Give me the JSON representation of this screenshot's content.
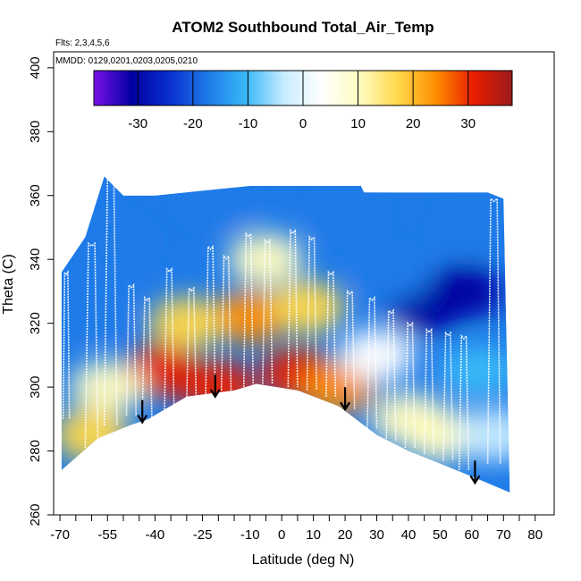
{
  "chart_data": {
    "type": "heatmap",
    "title": "ATOM2 Southbound Total_Air_Temp",
    "annotations": [
      "Flts: 2,3,4,5,6",
      "MMDD: 0129,0201,0203,0205,0210"
    ],
    "xlabel": "Latitude (deg N)",
    "ylabel": "Theta (C)",
    "xlim": [
      -72,
      86
    ],
    "ylim": [
      260,
      405
    ],
    "x_ticks_major": [
      -70,
      -55,
      -40,
      -25,
      -10,
      0,
      10,
      20,
      30,
      40,
      50,
      60,
      70,
      80
    ],
    "y_ticks": [
      260,
      280,
      300,
      320,
      340,
      360,
      380,
      400
    ],
    "colorbar": {
      "range": [
        -38,
        38
      ],
      "ticks": [
        -30,
        -20,
        -10,
        0,
        10,
        20,
        30
      ],
      "colors": [
        "#7a11e8",
        "#0000a0",
        "#0a2fd0",
        "#1e7be8",
        "#38b8f8",
        "#c8ecff",
        "#ffffff",
        "#fffbc0",
        "#ffd84a",
        "#ff8c00",
        "#e81c00",
        "#9c1c1c"
      ]
    },
    "region": {
      "top_boundary": [
        [
          -69.5,
          336
        ],
        [
          -62,
          347
        ],
        [
          -56,
          366
        ],
        [
          -50,
          360
        ],
        [
          -40,
          360
        ],
        [
          -10,
          363
        ],
        [
          25,
          363
        ],
        [
          26,
          361
        ],
        [
          65,
          361
        ],
        [
          70,
          359
        ]
      ],
      "bottom_boundary": [
        [
          -69.5,
          274
        ],
        [
          -58,
          284
        ],
        [
          -48,
          288
        ],
        [
          -42,
          290
        ],
        [
          -30,
          297
        ],
        [
          -15,
          299
        ],
        [
          -8,
          301
        ],
        [
          5,
          299
        ],
        [
          18,
          294
        ],
        [
          30,
          285
        ],
        [
          40,
          280
        ],
        [
          50,
          276
        ],
        [
          60,
          272
        ],
        [
          72,
          267
        ]
      ]
    },
    "field_blobs": [
      {
        "lat": -20,
        "theta": 300,
        "value": 33
      },
      {
        "lat": 5,
        "theta": 304,
        "value": 34
      },
      {
        "lat": -38,
        "theta": 305,
        "value": 30
      },
      {
        "lat": 18,
        "theta": 300,
        "value": 25
      },
      {
        "lat": -10,
        "theta": 322,
        "value": 23
      },
      {
        "lat": 8,
        "theta": 325,
        "value": 18
      },
      {
        "lat": -30,
        "theta": 320,
        "value": 15
      },
      {
        "lat": -5,
        "theta": 340,
        "value": 8
      },
      {
        "lat": -55,
        "theta": 300,
        "value": 12
      },
      {
        "lat": -60,
        "theta": 285,
        "value": 15
      },
      {
        "lat": 40,
        "theta": 290,
        "value": 10
      },
      {
        "lat": 50,
        "theta": 285,
        "value": 8
      },
      {
        "lat": 30,
        "theta": 310,
        "value": 4
      },
      {
        "lat": -60,
        "theta": 325,
        "value": -15
      },
      {
        "lat": -52,
        "theta": 345,
        "value": -20
      },
      {
        "lat": -20,
        "theta": 358,
        "value": -20
      },
      {
        "lat": 20,
        "theta": 355,
        "value": -18
      },
      {
        "lat": 45,
        "theta": 325,
        "value": -33
      },
      {
        "lat": 58,
        "theta": 330,
        "value": -30
      },
      {
        "lat": 35,
        "theta": 335,
        "value": -20
      },
      {
        "lat": 60,
        "theta": 350,
        "value": -15
      },
      {
        "lat": 62,
        "theta": 305,
        "value": -10
      },
      {
        "lat": 67,
        "theta": 285,
        "value": -5
      }
    ],
    "profiles": [
      {
        "lat0": -69,
        "lat1": -67,
        "theta_min": 290,
        "theta_max": 336
      },
      {
        "lat0": -62,
        "lat1": -58,
        "theta_min": 281,
        "theta_max": 345
      },
      {
        "lat0": -56,
        "lat1": -52,
        "theta_min": 288,
        "theta_max": 366
      },
      {
        "lat0": -49,
        "lat1": -46,
        "theta_min": 291,
        "theta_max": 332
      },
      {
        "lat0": -44,
        "lat1": -41,
        "theta_min": 290,
        "theta_max": 328
      },
      {
        "lat0": -37,
        "lat1": -34,
        "theta_min": 293,
        "theta_max": 337
      },
      {
        "lat0": -30,
        "lat1": -27,
        "theta_min": 296,
        "theta_max": 331
      },
      {
        "lat0": -24,
        "lat1": -21,
        "theta_min": 297,
        "theta_max": 344
      },
      {
        "lat0": -19,
        "lat1": -16,
        "theta_min": 299,
        "theta_max": 341
      },
      {
        "lat0": -12,
        "lat1": -9,
        "theta_min": 300,
        "theta_max": 348
      },
      {
        "lat0": -6,
        "lat1": -3,
        "theta_min": 301,
        "theta_max": 346
      },
      {
        "lat0": 2,
        "lat1": 5,
        "theta_min": 300,
        "theta_max": 349
      },
      {
        "lat0": 8,
        "lat1": 11,
        "theta_min": 299,
        "theta_max": 347
      },
      {
        "lat0": 14,
        "lat1": 17,
        "theta_min": 297,
        "theta_max": 336
      },
      {
        "lat0": 20,
        "lat1": 23,
        "theta_min": 293,
        "theta_max": 330
      },
      {
        "lat0": 27,
        "lat1": 30,
        "theta_min": 287,
        "theta_max": 328
      },
      {
        "lat0": 33,
        "lat1": 36,
        "theta_min": 283,
        "theta_max": 324
      },
      {
        "lat0": 39,
        "lat1": 42,
        "theta_min": 281,
        "theta_max": 320
      },
      {
        "lat0": 45,
        "lat1": 48,
        "theta_min": 279,
        "theta_max": 318
      },
      {
        "lat0": 51,
        "lat1": 54,
        "theta_min": 277,
        "theta_max": 317
      },
      {
        "lat0": 56,
        "lat1": 59,
        "theta_min": 274,
        "theta_max": 316
      },
      {
        "lat0": 65,
        "lat1": 69,
        "theta_min": 276,
        "theta_max": 359
      }
    ],
    "arrows": [
      {
        "lat": -44,
        "theta_start": 296,
        "theta_end": 289
      },
      {
        "lat": -21,
        "theta_start": 304,
        "theta_end": 297
      },
      {
        "lat": 20,
        "theta_start": 300,
        "theta_end": 293
      },
      {
        "lat": 61,
        "theta_start": 277,
        "theta_end": 270
      }
    ]
  }
}
